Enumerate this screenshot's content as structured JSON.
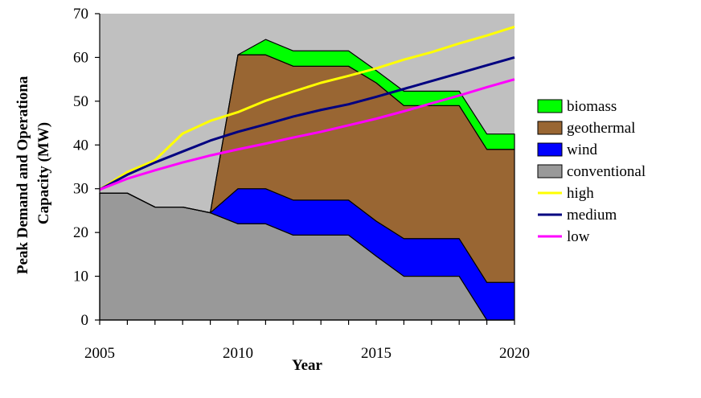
{
  "chart_data": {
    "type": "area",
    "title": "",
    "xlabel": "Year",
    "ylabel": "Peak Demand and Operationa Capacity (MW)",
    "xlim": [
      2005,
      2020
    ],
    "ylim": [
      0,
      70
    ],
    "x_ticks": [
      "2005",
      "2010",
      "2015",
      "2020"
    ],
    "y_ticks": [
      "0",
      "10",
      "20",
      "30",
      "40",
      "50",
      "60",
      "70"
    ],
    "grid": false,
    "legend_position": "right",
    "plot_background": "#c0c0c0",
    "x": [
      2005,
      2006,
      2007,
      2008,
      2009,
      2010,
      2011,
      2012,
      2013,
      2014,
      2015,
      2016,
      2017,
      2018,
      2019,
      2020
    ],
    "stacked_series": [
      {
        "name": "conventional",
        "color": "#999999",
        "values": [
          29,
          29,
          25.8,
          25.8,
          24.5,
          22,
          22,
          19.4,
          19.4,
          19.4,
          14.6,
          10,
          10,
          10,
          0,
          0
        ]
      },
      {
        "name": "wind",
        "color": "#0000ff",
        "values": [
          0,
          0,
          0,
          0,
          0,
          8,
          8,
          8,
          8,
          8,
          8,
          8.6,
          8.6,
          8.6,
          8.6,
          8.6
        ]
      },
      {
        "name": "geothermal",
        "color": "#996633",
        "values": [
          0,
          0,
          0,
          0,
          0,
          30.6,
          30.6,
          30.6,
          30.6,
          30.6,
          31.6,
          30.4,
          30.4,
          30.4,
          30.4,
          30.4
        ]
      },
      {
        "name": "biomass",
        "color": "#00ff00",
        "values": [
          0,
          0,
          0,
          0,
          0,
          0,
          3.5,
          3.5,
          3.5,
          3.5,
          2.8,
          3.3,
          3.3,
          3.3,
          3.5,
          3.5
        ]
      }
    ],
    "line_series": [
      {
        "name": "high",
        "color": "#ffff00",
        "values": [
          29.8,
          33.8,
          36.5,
          42.6,
          45.5,
          47.5,
          50.1,
          52.2,
          54.2,
          55.8,
          57.5,
          59.5,
          61.2,
          63.2,
          65,
          67
        ]
      },
      {
        "name": "medium",
        "color": "#000080",
        "values": [
          29.8,
          33.2,
          36,
          38.5,
          41,
          43,
          44.7,
          46.5,
          48,
          49.3,
          51,
          52.8,
          54.6,
          56.4,
          58.2,
          60
        ]
      },
      {
        "name": "low",
        "color": "#ff00ff",
        "values": [
          29.8,
          32.3,
          34.2,
          36,
          37.6,
          39,
          40.3,
          41.7,
          43,
          44.5,
          46,
          47.7,
          49.5,
          51.3,
          53.2,
          55
        ]
      }
    ],
    "legend": [
      "biomass",
      "geothermal",
      "wind",
      "conventional",
      "high",
      "medium",
      "low"
    ]
  }
}
